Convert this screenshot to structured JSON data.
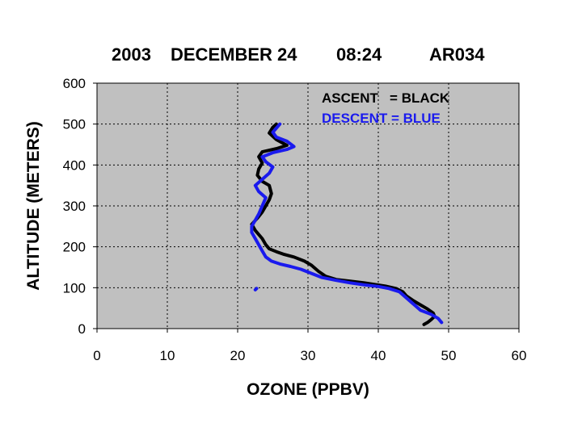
{
  "chart_data": {
    "type": "line",
    "title_parts": [
      "2003",
      "DECEMBER 24",
      "08:24",
      "AR034"
    ],
    "xlabel": "OZONE (PPBV)",
    "ylabel": "ALTITUDE (METERS)",
    "xlim": [
      0,
      60
    ],
    "ylim": [
      0,
      600
    ],
    "xticks": [
      "0",
      "10",
      "20",
      "30",
      "40",
      "50",
      "60"
    ],
    "yticks": [
      "0",
      "100",
      "200",
      "300",
      "400",
      "500",
      "600"
    ],
    "grid": true,
    "plot_background": "#c0c0c0",
    "legend": {
      "placement": "top-right",
      "line1": "ASCENT   = BLACK",
      "line2": "DESCENT = BLUE"
    },
    "series": [
      {
        "name": "ASCENT",
        "color": "#000000",
        "points": [
          [
            46.5,
            10
          ],
          [
            47,
            15
          ],
          [
            47.5,
            22
          ],
          [
            48,
            30
          ],
          [
            47.8,
            38
          ],
          [
            47,
            48
          ],
          [
            46,
            58
          ],
          [
            45,
            68
          ],
          [
            44,
            80
          ],
          [
            43.5,
            90
          ],
          [
            42.5,
            98
          ],
          [
            41,
            104
          ],
          [
            39.5,
            108
          ],
          [
            38,
            112
          ],
          [
            36,
            116
          ],
          [
            34,
            120
          ],
          [
            32.5,
            128
          ],
          [
            31.5,
            140
          ],
          [
            30.5,
            155
          ],
          [
            29.5,
            165
          ],
          [
            28,
            175
          ],
          [
            26.5,
            182
          ],
          [
            25.5,
            188
          ],
          [
            24.5,
            195
          ],
          [
            24,
            205
          ],
          [
            23.5,
            220
          ],
          [
            22.5,
            240
          ],
          [
            22,
            255
          ],
          [
            22.8,
            270
          ],
          [
            23.5,
            285
          ],
          [
            24,
            300
          ],
          [
            24.5,
            315
          ],
          [
            24.8,
            330
          ],
          [
            24.5,
            350
          ],
          [
            23.5,
            360
          ],
          [
            22.8,
            375
          ],
          [
            23,
            390
          ],
          [
            23.5,
            405
          ],
          [
            23,
            420
          ],
          [
            23.5,
            432
          ],
          [
            25.5,
            440
          ],
          [
            27,
            448
          ],
          [
            25.5,
            462
          ],
          [
            24.5,
            478
          ],
          [
            25,
            492
          ],
          [
            25.5,
            500
          ]
        ]
      },
      {
        "name": "DESCENT",
        "color": "#1a1aee",
        "points": [
          [
            49,
            15
          ],
          [
            48.5,
            25
          ],
          [
            47.5,
            35
          ],
          [
            46,
            45
          ],
          [
            45,
            60
          ],
          [
            44,
            75
          ],
          [
            43,
            90
          ],
          [
            41.5,
            98
          ],
          [
            40,
            103
          ],
          [
            38,
            107
          ],
          [
            36,
            112
          ],
          [
            34,
            118
          ],
          [
            32,
            125
          ],
          [
            30.5,
            135
          ],
          [
            29,
            145
          ],
          [
            27.5,
            152
          ],
          [
            26,
            158
          ],
          [
            24.8,
            165
          ],
          [
            24,
            175
          ],
          [
            23.5,
            190
          ],
          [
            23,
            205
          ],
          [
            22.5,
            220
          ],
          [
            22,
            235
          ],
          [
            22,
            250
          ],
          [
            22.5,
            265
          ],
          [
            23,
            280
          ],
          [
            23.5,
            300
          ],
          [
            24,
            320
          ],
          [
            23,
            335
          ],
          [
            22.5,
            350
          ],
          [
            23.5,
            365
          ],
          [
            24.5,
            380
          ],
          [
            25,
            395
          ],
          [
            24,
            408
          ],
          [
            23.5,
            420
          ],
          [
            25,
            430
          ],
          [
            27,
            438
          ],
          [
            28,
            445
          ],
          [
            27,
            458
          ],
          [
            25.5,
            468
          ],
          [
            25,
            480
          ],
          [
            25.5,
            490
          ],
          [
            26,
            500
          ]
        ]
      },
      {
        "name": "",
        "color": "#1a1aee",
        "points": [
          [
            22.5,
            95
          ],
          [
            22.7,
            98
          ]
        ]
      }
    ]
  }
}
